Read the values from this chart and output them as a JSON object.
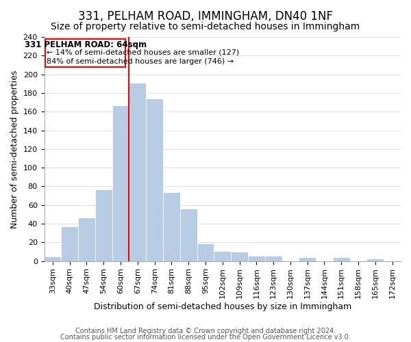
{
  "title": "331, PELHAM ROAD, IMMINGHAM, DN40 1NF",
  "subtitle": "Size of property relative to semi-detached houses in Immingham",
  "xlabel": "Distribution of semi-detached houses by size in Immingham",
  "ylabel": "Number of semi-detached properties",
  "footer_line1": "Contains HM Land Registry data © Crown copyright and database right 2024.",
  "footer_line2": "Contains public sector information licensed under the Open Government Licence v3.0.",
  "annotation_title": "331 PELHAM ROAD: 64sqm",
  "annotation_line2": "← 14% of semi-detached houses are smaller (127)",
  "annotation_line3": "84% of semi-detached houses are larger (746) →",
  "bin_labels": [
    "33sqm",
    "40sqm",
    "47sqm",
    "54sqm",
    "60sqm",
    "67sqm",
    "74sqm",
    "81sqm",
    "88sqm",
    "95sqm",
    "102sqm",
    "109sqm",
    "116sqm",
    "123sqm",
    "130sqm",
    "137sqm",
    "144sqm",
    "151sqm",
    "158sqm",
    "165sqm",
    "172sqm"
  ],
  "bar_values": [
    5,
    37,
    47,
    77,
    167,
    191,
    174,
    74,
    56,
    19,
    11,
    10,
    6,
    6,
    0,
    4,
    0,
    4,
    0,
    3,
    0
  ],
  "bar_color": "#b8cce4",
  "property_line_x": 4.5,
  "ylim": [
    0,
    240
  ],
  "yticks": [
    0,
    20,
    40,
    60,
    80,
    100,
    120,
    140,
    160,
    180,
    200,
    220,
    240
  ],
  "title_fontsize": 12,
  "subtitle_fontsize": 10,
  "axis_label_fontsize": 9,
  "tick_fontsize": 8,
  "footer_fontsize": 7
}
